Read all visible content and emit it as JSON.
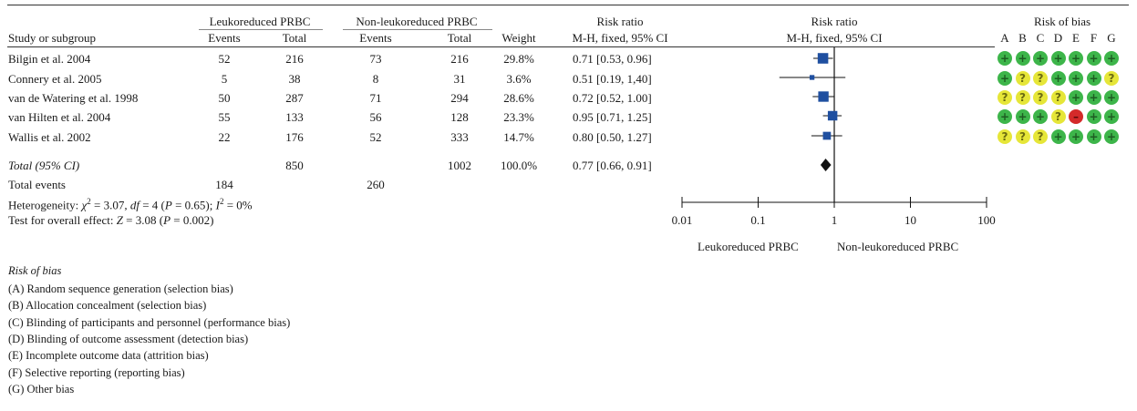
{
  "header": {
    "group1": "Leukoreduced PRBC",
    "group2": "Non-leukoreduced PRBC",
    "study_col": "Study or subgroup",
    "events1": "Events",
    "total1": "Total",
    "events2": "Events",
    "total2": "Total",
    "weight": "Weight",
    "rr_title": "Risk ratio",
    "rr_method": "M-H, fixed, 95% CI",
    "plot_title": "Risk ratio",
    "plot_method": "M-H, fixed, 95% CI",
    "rob_title": "Risk of bias",
    "rob_letters": [
      "A",
      "B",
      "C",
      "D",
      "E",
      "F",
      "G"
    ]
  },
  "studies": [
    {
      "name": "Bilgin et al. 2004",
      "e1": "52",
      "t1": "216",
      "e2": "73",
      "t2": "216",
      "weight": "29.8%",
      "ci": "0.71 [0.53, 0.96]",
      "rr": 0.71,
      "lo": 0.53,
      "hi": 0.96,
      "w": 29.8,
      "rob": [
        "low",
        "low",
        "low",
        "low",
        "low",
        "low",
        "low"
      ]
    },
    {
      "name": "Connery et al. 2005",
      "e1": "5",
      "t1": "38",
      "e2": "8",
      "t2": "31",
      "weight": "3.6%",
      "ci": "0.51 [0.19, 1,40]",
      "rr": 0.51,
      "lo": 0.19,
      "hi": 1.4,
      "w": 3.6,
      "rob": [
        "low",
        "unclear",
        "unclear",
        "low",
        "low",
        "low",
        "unclear"
      ]
    },
    {
      "name": "van de Watering et al. 1998",
      "e1": "50",
      "t1": "287",
      "e2": "71",
      "t2": "294",
      "weight": "28.6%",
      "ci": "0.72 [0.52, 1.00]",
      "rr": 0.72,
      "lo": 0.52,
      "hi": 1.0,
      "w": 28.6,
      "rob": [
        "unclear",
        "unclear",
        "unclear",
        "unclear",
        "low",
        "low",
        "low"
      ]
    },
    {
      "name": "van Hilten et al. 2004",
      "e1": "55",
      "t1": "133",
      "e2": "56",
      "t2": "128",
      "weight": "23.3%",
      "ci": "0.95 [0.71, 1.25]",
      "rr": 0.95,
      "lo": 0.71,
      "hi": 1.25,
      "w": 23.3,
      "rob": [
        "low",
        "low",
        "low",
        "unclear",
        "high",
        "low",
        "low"
      ]
    },
    {
      "name": "Wallis et al. 2002",
      "e1": "22",
      "t1": "176",
      "e2": "52",
      "t2": "333",
      "weight": "14.7%",
      "ci": "0.80 [0.50, 1.27]",
      "rr": 0.8,
      "lo": 0.5,
      "hi": 1.27,
      "w": 14.7,
      "rob": [
        "unclear",
        "unclear",
        "unclear",
        "low",
        "low",
        "low",
        "low"
      ]
    }
  ],
  "total": {
    "label": "Total (95% CI)",
    "t1": "850",
    "t2": "1002",
    "weight": "100.0%",
    "ci": "0.77 [0.66, 0.91]",
    "rr": 0.77,
    "lo": 0.66,
    "hi": 0.91
  },
  "total_events": {
    "label": "Total events",
    "e1": "184",
    "e2": "260"
  },
  "heterogeneity": {
    "prefix": "Heterogeneity: ",
    "chi_symbol": "χ",
    "sup2": "2",
    "mid": " = 3.07, ",
    "df_label": "df",
    "df_value": " = 4 (",
    "p_label": "P",
    "p_value": " = 0.65); ",
    "i_symbol": "I",
    "i_value": " = 0%"
  },
  "overall_effect": {
    "prefix": "Test for overall effect: ",
    "z_label": "Z",
    "z_value": " = 3.08 (",
    "p_label": "P",
    "p_value": " = 0.002)"
  },
  "axis": {
    "ticks": [
      "0.01",
      "0.1",
      "1",
      "10",
      "100"
    ],
    "left_label": "Leukoreduced PRBC",
    "right_label": "Non-leukoreduced PRBC"
  },
  "rob_legend": {
    "title": "Risk of bias",
    "items": [
      "(A) Random sequence generation (selection bias)",
      "(B) Allocation concealment (selection bias)",
      "(C) Blinding of participants and personnel (performance bias)",
      "(D) Blinding of outcome assessment (detection bias)",
      "(E) Incomplete outcome data (attrition bias)",
      "(F) Selective reporting (reporting bias)",
      "(G) Other bias"
    ]
  },
  "colors": {
    "low": "#3db54a",
    "unclear": "#e6e638",
    "high": "#d42a2a",
    "square": "#1f4fa0",
    "diamond": "#111111"
  },
  "rob_symbols": {
    "low": "+",
    "unclear": "?",
    "high": "–"
  },
  "chart_data": {
    "type": "forest",
    "title": "",
    "xlabel": "Risk ratio (M-H, fixed, 95% CI)",
    "xscale": "log",
    "xlim": [
      0.01,
      100
    ],
    "series": [
      {
        "name": "Bilgin et al. 2004",
        "rr": 0.71,
        "ci": [
          0.53,
          0.96
        ],
        "weight": 29.8
      },
      {
        "name": "Connery et al. 2005",
        "rr": 0.51,
        "ci": [
          0.19,
          1.4
        ],
        "weight": 3.6
      },
      {
        "name": "van de Watering et al. 1998",
        "rr": 0.72,
        "ci": [
          0.52,
          1.0
        ],
        "weight": 28.6
      },
      {
        "name": "van Hilten et al. 2004",
        "rr": 0.95,
        "ci": [
          0.71,
          1.25
        ],
        "weight": 23.3
      },
      {
        "name": "Wallis et al. 2002",
        "rr": 0.8,
        "ci": [
          0.5,
          1.27
        ],
        "weight": 14.7
      },
      {
        "name": "Total (95% CI)",
        "rr": 0.77,
        "ci": [
          0.66,
          0.91
        ],
        "weight": 100.0
      }
    ]
  }
}
